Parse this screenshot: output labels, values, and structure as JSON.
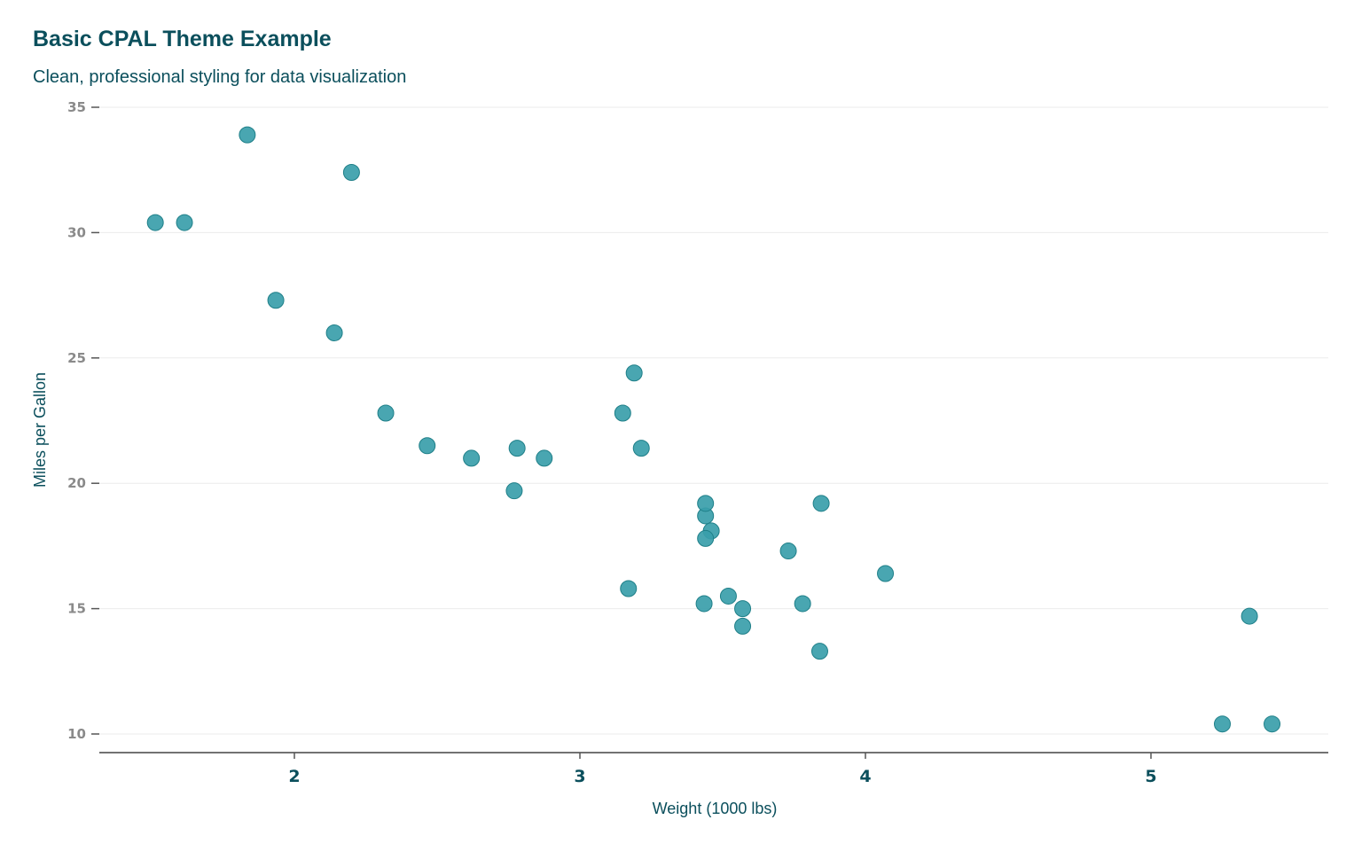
{
  "chart_data": {
    "type": "scatter",
    "title": "Basic CPAL Theme Example",
    "subtitle": "Clean, professional styling for data visualization",
    "xlabel": "Weight (1000 lbs)",
    "ylabel": "Miles per Gallon",
    "xlim": [
      1.39,
      5.6
    ],
    "ylim": [
      9.3,
      35.1
    ],
    "xticks": [
      2,
      3,
      4,
      5
    ],
    "yticks": [
      10,
      15,
      20,
      25,
      30,
      35
    ],
    "grid": "horizontal",
    "colors": {
      "point": "#3a9eaa",
      "point_stroke": "#1f7f88",
      "text": "#0b4f5c"
    },
    "points": [
      {
        "x": 2.62,
        "y": 21.0
      },
      {
        "x": 2.875,
        "y": 21.0
      },
      {
        "x": 2.32,
        "y": 22.8
      },
      {
        "x": 3.215,
        "y": 21.4
      },
      {
        "x": 3.44,
        "y": 18.7
      },
      {
        "x": 3.46,
        "y": 18.1
      },
      {
        "x": 3.57,
        "y": 14.3
      },
      {
        "x": 3.19,
        "y": 24.4
      },
      {
        "x": 3.15,
        "y": 22.8
      },
      {
        "x": 3.44,
        "y": 19.2
      },
      {
        "x": 3.44,
        "y": 17.8
      },
      {
        "x": 4.07,
        "y": 16.4
      },
      {
        "x": 3.73,
        "y": 17.3
      },
      {
        "x": 3.78,
        "y": 15.2
      },
      {
        "x": 5.25,
        "y": 10.4
      },
      {
        "x": 5.424,
        "y": 10.4
      },
      {
        "x": 5.345,
        "y": 14.7
      },
      {
        "x": 2.2,
        "y": 32.4
      },
      {
        "x": 1.615,
        "y": 30.4
      },
      {
        "x": 1.835,
        "y": 33.9
      },
      {
        "x": 2.465,
        "y": 21.5
      },
      {
        "x": 3.52,
        "y": 15.5
      },
      {
        "x": 3.435,
        "y": 15.2
      },
      {
        "x": 3.84,
        "y": 13.3
      },
      {
        "x": 3.845,
        "y": 19.2
      },
      {
        "x": 1.935,
        "y": 27.3
      },
      {
        "x": 2.14,
        "y": 26.0
      },
      {
        "x": 1.513,
        "y": 30.4
      },
      {
        "x": 3.17,
        "y": 15.8
      },
      {
        "x": 2.77,
        "y": 19.7
      },
      {
        "x": 3.57,
        "y": 15.0
      },
      {
        "x": 2.78,
        "y": 21.4
      }
    ]
  }
}
